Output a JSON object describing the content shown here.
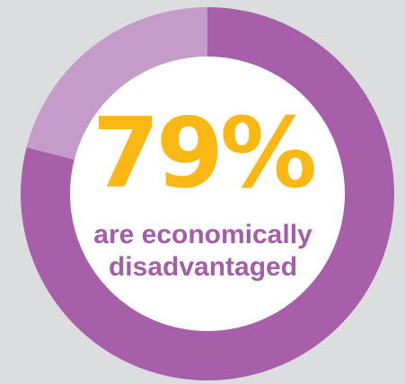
{
  "chart_data": {
    "type": "pie",
    "labels": [
      "are economically disadvantaged",
      ""
    ],
    "values": [
      79,
      21
    ],
    "colors": [
      "#a65fa8",
      "#c59bc9"
    ],
    "center_value": "79%",
    "center_caption": "are economically disadvantaged",
    "center_color": "#fbb714",
    "caption_color": "#a35ea8",
    "hole_color": "#ffffff",
    "background": "#dcdddf"
  }
}
